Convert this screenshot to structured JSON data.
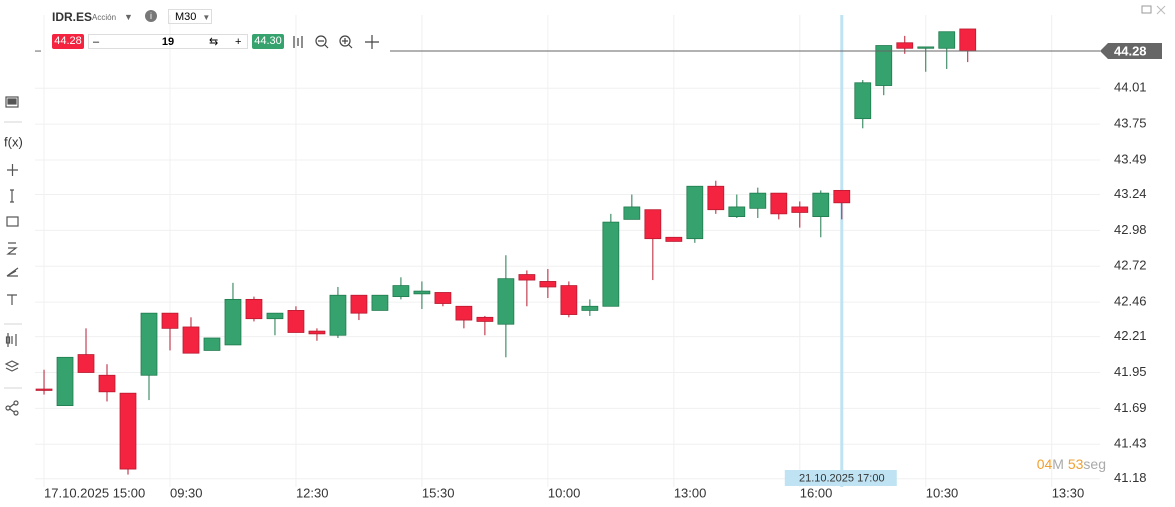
{
  "header": {
    "symbol": "IDR.ES",
    "asset_type": "Acción",
    "timeframe": "M30"
  },
  "trade": {
    "sell_price": "44.28",
    "quantity": "19",
    "buy_price": "44.30"
  },
  "toolbar": {
    "fx": "f(x)"
  },
  "countdown": {
    "minutes": "04",
    "minutes_unit": "M",
    "seconds": "53",
    "seconds_unit": "seg"
  },
  "chart_data": {
    "type": "candlestick",
    "open": [
      41.83,
      41.71,
      42.08,
      41.93,
      41.8,
      41.93,
      42.38,
      42.28,
      42.11,
      42.15,
      42.48,
      42.34,
      42.4,
      42.25,
      42.22,
      42.51,
      42.4,
      42.5,
      42.52,
      42.53,
      42.43,
      42.35,
      42.3,
      42.66,
      42.61,
      42.58,
      42.4,
      42.43,
      43.06,
      43.13,
      42.93,
      42.92,
      43.3,
      43.08,
      43.14,
      43.25,
      43.15,
      43.08,
      43.27,
      43.79,
      44.03,
      44.34,
      44.3,
      44.3,
      44.44
    ],
    "high": [
      41.97,
      42.06,
      42.27,
      42.01,
      41.8,
      42.38,
      42.38,
      42.35,
      42.2,
      42.6,
      42.5,
      42.38,
      42.43,
      42.27,
      42.57,
      42.51,
      42.51,
      42.64,
      42.61,
      42.53,
      42.43,
      42.36,
      42.8,
      42.69,
      42.7,
      42.61,
      42.48,
      43.1,
      43.24,
      43.13,
      42.93,
      43.3,
      43.34,
      43.24,
      43.29,
      43.25,
      43.19,
      43.27,
      43.27,
      44.07,
      44.32,
      44.39,
      44.31,
      44.42,
      44.44
    ],
    "low": [
      41.79,
      41.71,
      41.95,
      41.74,
      41.21,
      41.75,
      42.11,
      42.09,
      42.11,
      42.15,
      42.32,
      42.22,
      42.24,
      42.18,
      42.2,
      42.33,
      42.4,
      42.48,
      42.41,
      42.43,
      42.27,
      42.22,
      42.06,
      42.43,
      42.49,
      42.35,
      42.36,
      42.43,
      43.06,
      42.62,
      42.9,
      42.89,
      43.1,
      43.07,
      43.07,
      43.06,
      43.0,
      42.93,
      43.06,
      43.72,
      43.96,
      44.26,
      44.13,
      44.15,
      44.2
    ],
    "close": [
      41.82,
      42.06,
      41.95,
      41.81,
      41.25,
      42.38,
      42.27,
      42.09,
      42.2,
      42.48,
      42.34,
      42.38,
      42.24,
      42.23,
      42.51,
      42.38,
      42.51,
      42.58,
      42.54,
      42.45,
      42.33,
      42.32,
      42.63,
      42.62,
      42.57,
      42.37,
      42.43,
      43.04,
      43.15,
      42.92,
      42.9,
      43.3,
      43.13,
      43.15,
      43.25,
      43.1,
      43.11,
      43.25,
      43.18,
      44.05,
      44.32,
      44.3,
      44.31,
      44.42,
      44.28
    ],
    "up_color": "#36a36f",
    "down_color": "#f4233f",
    "ylim": [
      41.12,
      44.65
    ],
    "yticks": [
      41.18,
      41.43,
      41.69,
      41.95,
      42.21,
      42.46,
      42.72,
      42.98,
      43.24,
      43.49,
      43.75,
      44.01
    ],
    "xlim": [
      -0.43,
      50.3
    ],
    "xticks": [
      {
        "value": 0,
        "label": "17.10.2025 15:00"
      },
      {
        "value": 6,
        "label": "09:30"
      },
      {
        "value": 12,
        "label": "12:30"
      },
      {
        "value": 18,
        "label": "15:30"
      },
      {
        "value": 24,
        "label": "10:00"
      },
      {
        "value": 30,
        "label": "13:00"
      },
      {
        "value": 36,
        "label": "16:00"
      },
      {
        "value": 42,
        "label": "10:30"
      },
      {
        "value": 48,
        "label": "13:30"
      }
    ],
    "grid": true,
    "last_price": 44.28,
    "crosshair": {
      "x": 38,
      "label": "21.10.2025 17:00"
    }
  }
}
